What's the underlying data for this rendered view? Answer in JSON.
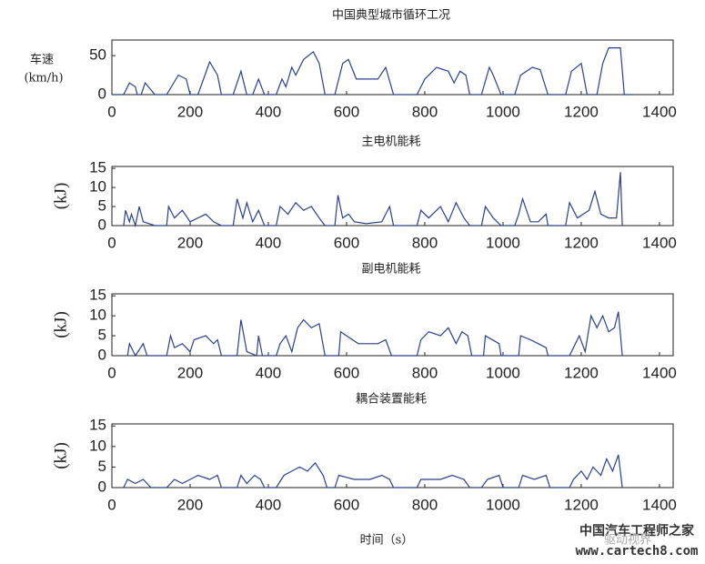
{
  "chart_data": [
    {
      "type": "line",
      "title": "中国典型城市循环工况",
      "ylabel": "车速",
      "ylabel_unit": "(km/h)",
      "color": "#2b3f8f",
      "xlim": [
        0,
        1435
      ],
      "xticks": [
        0,
        200,
        400,
        600,
        800,
        1000,
        1200,
        1400
      ],
      "ylim": [
        0,
        70
      ],
      "yticks": [
        0,
        50
      ],
      "x": [
        0,
        30,
        45,
        60,
        65,
        75,
        85,
        110,
        140,
        170,
        190,
        200,
        220,
        250,
        270,
        280,
        310,
        330,
        345,
        360,
        375,
        390,
        420,
        435,
        445,
        460,
        470,
        490,
        515,
        530,
        545,
        570,
        590,
        605,
        625,
        680,
        700,
        720,
        780,
        800,
        830,
        860,
        875,
        890,
        905,
        915,
        945,
        965,
        975,
        995,
        1030,
        1045,
        1075,
        1095,
        1115,
        1160,
        1175,
        1200,
        1215,
        1240,
        1255,
        1270,
        1300,
        1310,
        1330
      ],
      "values": [
        0,
        0,
        15,
        10,
        0,
        0,
        15,
        0,
        0,
        25,
        20,
        0,
        0,
        42,
        25,
        0,
        0,
        30,
        0,
        0,
        20,
        0,
        0,
        20,
        10,
        35,
        25,
        45,
        55,
        40,
        0,
        0,
        40,
        45,
        20,
        20,
        35,
        0,
        0,
        20,
        35,
        30,
        15,
        30,
        25,
        0,
        0,
        35,
        25,
        0,
        0,
        25,
        35,
        32,
        0,
        0,
        30,
        40,
        0,
        0,
        40,
        60,
        60,
        0,
        0
      ]
    },
    {
      "type": "line",
      "title": "主电机能耗",
      "ylabel": "(kJ)",
      "color": "#2b3f8f",
      "xlim": [
        0,
        1435
      ],
      "xticks": [
        0,
        200,
        400,
        600,
        800,
        1000,
        1200,
        1400
      ],
      "ylim": [
        0,
        15.5
      ],
      "yticks": [
        0,
        5,
        10,
        15
      ],
      "x": [
        30,
        35,
        45,
        50,
        60,
        70,
        80,
        110,
        140,
        145,
        160,
        180,
        200,
        220,
        240,
        260,
        280,
        310,
        320,
        335,
        345,
        360,
        375,
        390,
        420,
        430,
        450,
        470,
        490,
        510,
        530,
        545,
        570,
        578,
        590,
        605,
        620,
        650,
        690,
        710,
        720,
        780,
        790,
        810,
        840,
        860,
        880,
        900,
        915,
        945,
        955,
        975,
        995,
        1030,
        1040,
        1050,
        1070,
        1090,
        1110,
        1115,
        1160,
        1170,
        1190,
        1205,
        1220,
        1235,
        1250,
        1270,
        1290,
        1300,
        1305
      ],
      "values": [
        0,
        4,
        1,
        3,
        0,
        5,
        1,
        0,
        0,
        5,
        2,
        4,
        1,
        2,
        3,
        1,
        0,
        0,
        7,
        2,
        6,
        1,
        4,
        0,
        0,
        5,
        3,
        6,
        4,
        5,
        2,
        0,
        0,
        8,
        2,
        3,
        1,
        0.5,
        1,
        5,
        0,
        0,
        4,
        2,
        5,
        1,
        6,
        2,
        0,
        0,
        5,
        2,
        0,
        0,
        3,
        7,
        1,
        1,
        3,
        0,
        0,
        6,
        2,
        3,
        4,
        9,
        3,
        2,
        2,
        14,
        0
      ]
    },
    {
      "type": "line",
      "title": "副电机能耗",
      "ylabel": "(kJ)",
      "color": "#2b3f8f",
      "xlim": [
        0,
        1435
      ],
      "xticks": [
        0,
        200,
        400,
        600,
        800,
        1000,
        1200,
        1400
      ],
      "ylim": [
        0,
        15.5
      ],
      "yticks": [
        0,
        5,
        10,
        15
      ],
      "x": [
        40,
        45,
        60,
        80,
        90,
        140,
        150,
        160,
        180,
        200,
        210,
        240,
        260,
        270,
        280,
        320,
        330,
        345,
        370,
        375,
        385,
        420,
        430,
        445,
        460,
        475,
        490,
        510,
        530,
        545,
        580,
        585,
        600,
        630,
        680,
        700,
        715,
        780,
        790,
        810,
        840,
        860,
        880,
        895,
        910,
        920,
        950,
        955,
        990,
        995,
        1040,
        1045,
        1070,
        1090,
        1110,
        1115,
        1170,
        1180,
        1195,
        1210,
        1225,
        1240,
        1255,
        1270,
        1285,
        1295,
        1305
      ],
      "values": [
        0,
        3,
        0,
        3,
        0,
        0,
        5,
        2,
        3,
        1,
        4,
        5,
        3,
        4,
        0,
        0,
        9,
        1,
        0,
        5,
        0,
        0,
        3,
        5,
        1,
        7,
        9,
        7,
        8,
        0,
        0,
        6,
        5,
        3,
        3,
        4,
        0,
        0,
        4,
        6,
        5,
        7,
        3,
        6,
        5,
        0,
        0,
        5,
        3,
        0,
        0,
        5,
        4,
        3,
        2,
        0,
        0,
        2,
        5,
        1,
        10,
        7,
        10,
        6,
        7,
        11,
        0
      ]
    },
    {
      "type": "line",
      "title": "耦合装置能耗",
      "ylabel": "(kJ)",
      "xlabel": "时间（s）",
      "color": "#2b3f8f",
      "xlim": [
        0,
        1435
      ],
      "xticks": [
        0,
        200,
        400,
        600,
        800,
        1000,
        1200,
        1400
      ],
      "ylim": [
        0,
        15.5
      ],
      "yticks": [
        0,
        5,
        10,
        15
      ],
      "x": [
        30,
        40,
        60,
        80,
        100,
        140,
        160,
        180,
        200,
        220,
        250,
        270,
        280,
        320,
        330,
        345,
        365,
        380,
        390,
        420,
        440,
        460,
        480,
        500,
        520,
        540,
        550,
        570,
        580,
        620,
        660,
        690,
        710,
        720,
        780,
        790,
        840,
        870,
        900,
        915,
        945,
        960,
        990,
        1000,
        1040,
        1050,
        1080,
        1110,
        1120,
        1170,
        1180,
        1200,
        1215,
        1230,
        1250,
        1265,
        1280,
        1295,
        1305
      ],
      "values": [
        0,
        2,
        1,
        2,
        0,
        0,
        2,
        1,
        2,
        3,
        2,
        3,
        0,
        0,
        3,
        1,
        3,
        2,
        0,
        0,
        3,
        4,
        5,
        4,
        6,
        3,
        0,
        0,
        3,
        2,
        2,
        3,
        2,
        0,
        0,
        2,
        2,
        3,
        2,
        0,
        0,
        2,
        3,
        0,
        0,
        3,
        2,
        3,
        0,
        0,
        2,
        4,
        2,
        5,
        3,
        7,
        4,
        8,
        0
      ]
    }
  ],
  "watermark": [
    "中国汽车工程师之家",
    "驱动视界",
    "www.cartech8.com"
  ]
}
